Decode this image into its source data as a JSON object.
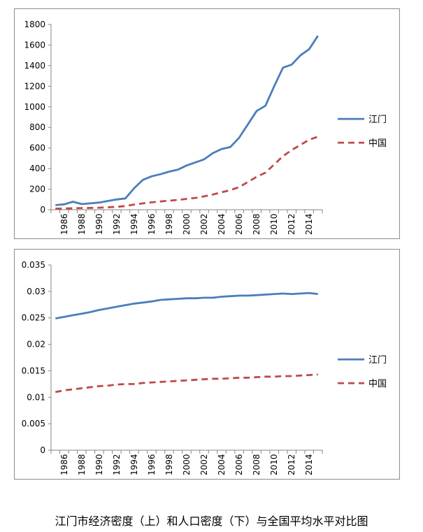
{
  "caption": "江门市经济密度（上）和人口密度（下）与全国平均水平对比图",
  "chart_data": [
    {
      "type": "line",
      "x": [
        "1985",
        "1986",
        "1987",
        "1988",
        "1989",
        "1990",
        "1991",
        "1992",
        "1993",
        "1994",
        "1995",
        "1996",
        "1997",
        "1998",
        "1999",
        "2000",
        "2001",
        "2002",
        "2003",
        "2004",
        "2005",
        "2006",
        "2007",
        "2008",
        "2009",
        "2010",
        "2011",
        "2012",
        "2013",
        "2014",
        "2015"
      ],
      "x_tick_labels": [
        "1986",
        "1988",
        "1990",
        "1992",
        "1994",
        "1996",
        "1998",
        "2000",
        "2002",
        "2004",
        "2006",
        "2008",
        "2010",
        "2012",
        "2014"
      ],
      "ylim": [
        0,
        1800
      ],
      "y_ticks": [
        "0",
        "200",
        "400",
        "600",
        "800",
        "1000",
        "1200",
        "1400",
        "1600",
        "1800"
      ],
      "legend_position": "right",
      "series": [
        {
          "name": "江门",
          "color": "#4a7ebb",
          "style": "solid",
          "values": [
            45,
            52,
            78,
            55,
            62,
            70,
            85,
            100,
            110,
            210,
            290,
            325,
            345,
            370,
            390,
            430,
            460,
            490,
            550,
            590,
            610,
            700,
            830,
            960,
            1010,
            1200,
            1380,
            1410,
            1500,
            1560,
            1690
          ]
        },
        {
          "name": "中国",
          "color": "#be4b48",
          "style": "dashed",
          "values": [
            10,
            12,
            14,
            16,
            18,
            20,
            24,
            28,
            36,
            50,
            62,
            72,
            80,
            88,
            95,
            105,
            115,
            130,
            148,
            170,
            190,
            220,
            270,
            320,
            360,
            440,
            520,
            580,
            630,
            680,
            710
          ]
        }
      ]
    },
    {
      "type": "line",
      "x": [
        "1985",
        "1986",
        "1987",
        "1988",
        "1989",
        "1990",
        "1991",
        "1992",
        "1993",
        "1994",
        "1995",
        "1996",
        "1997",
        "1998",
        "1999",
        "2000",
        "2001",
        "2002",
        "2003",
        "2004",
        "2005",
        "2006",
        "2007",
        "2008",
        "2009",
        "2010",
        "2011",
        "2012",
        "2013",
        "2014",
        "2015"
      ],
      "x_tick_labels": [
        "1986",
        "1988",
        "1990",
        "1992",
        "1994",
        "1996",
        "1998",
        "2000",
        "2002",
        "2004",
        "2006",
        "2008",
        "2010",
        "2012",
        "2014"
      ],
      "ylim": [
        0,
        0.035
      ],
      "y_ticks": [
        "0",
        "0.005",
        "0.01",
        "0.015",
        "0.02",
        "0.025",
        "0.03",
        "0.035"
      ],
      "legend_position": "right",
      "series": [
        {
          "name": "江门",
          "color": "#4a7ebb",
          "style": "solid",
          "values": [
            0.0249,
            0.0252,
            0.0255,
            0.0258,
            0.0261,
            0.0265,
            0.0268,
            0.0271,
            0.0274,
            0.0277,
            0.0279,
            0.0281,
            0.0284,
            0.0285,
            0.0286,
            0.0287,
            0.0287,
            0.0288,
            0.0288,
            0.029,
            0.0291,
            0.0292,
            0.0292,
            0.0293,
            0.0294,
            0.0295,
            0.0296,
            0.0295,
            0.0296,
            0.0297,
            0.0295
          ]
        },
        {
          "name": "中国",
          "color": "#be4b48",
          "style": "dashed",
          "values": [
            0.011,
            0.0113,
            0.0115,
            0.0117,
            0.0119,
            0.0121,
            0.0122,
            0.0124,
            0.0125,
            0.0125,
            0.0127,
            0.0128,
            0.0129,
            0.013,
            0.0131,
            0.0132,
            0.0133,
            0.0134,
            0.0135,
            0.0135,
            0.0136,
            0.0137,
            0.0137,
            0.0138,
            0.0139,
            0.0139,
            0.014,
            0.014,
            0.0141,
            0.0142,
            0.0143
          ]
        }
      ]
    }
  ]
}
